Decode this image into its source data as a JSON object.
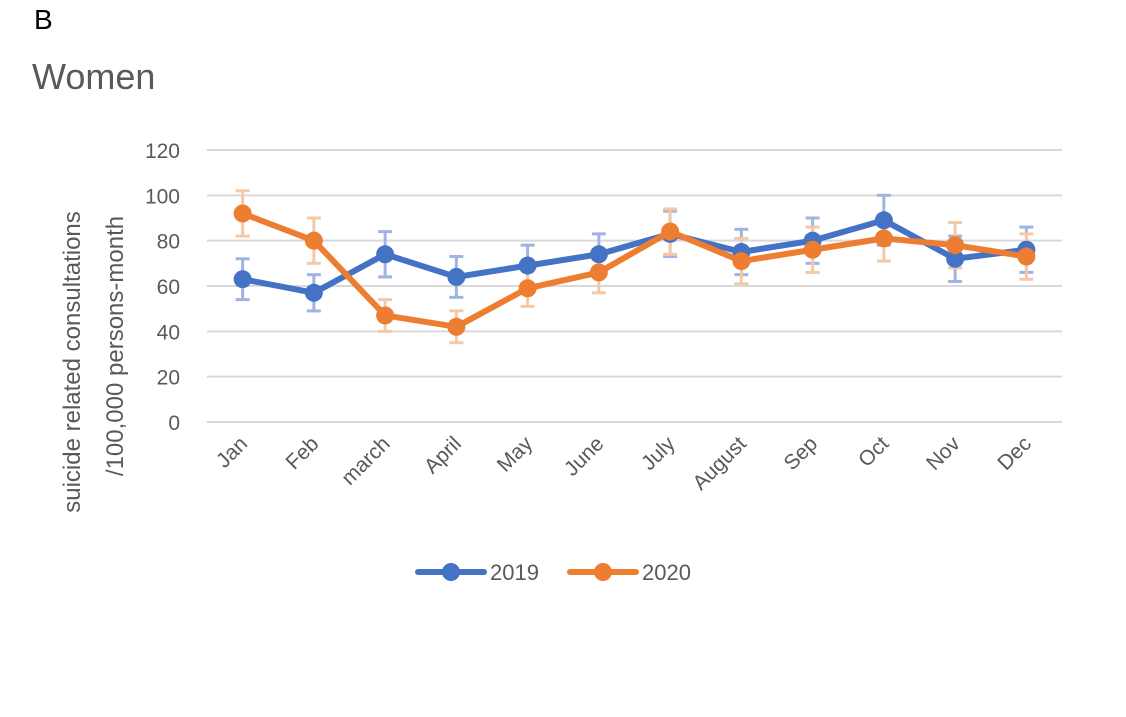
{
  "panel_letter": "B",
  "chart_data": {
    "type": "line",
    "title": "Women",
    "ylabel": [
      "suicide related consultations",
      "/100,000 persons-month"
    ],
    "xlabel": "",
    "ylim": [
      0,
      120
    ],
    "yticks": [
      0,
      20,
      40,
      60,
      80,
      100,
      120
    ],
    "grid": true,
    "legend_position": "bottom",
    "categories": [
      "Jan",
      "Feb",
      "march",
      "April",
      "May",
      "June",
      "July",
      "August",
      "Sep",
      "Oct",
      "Nov",
      "Dec"
    ],
    "series": [
      {
        "name": "2019",
        "color": "#4472C4",
        "errorbar_color": "#9FB4E3",
        "values": [
          63,
          57,
          74,
          64,
          69,
          74,
          83,
          75,
          80,
          89,
          72,
          76
        ],
        "errors": [
          9,
          8,
          10,
          9,
          9,
          9,
          10,
          10,
          10,
          11,
          10,
          10
        ]
      },
      {
        "name": "2020",
        "color": "#ED7D31",
        "errorbar_color": "#F4C9A6",
        "values": [
          92,
          80,
          47,
          42,
          59,
          66,
          84,
          71,
          76,
          81,
          78,
          73
        ],
        "errors": [
          10,
          10,
          7,
          7,
          8,
          9,
          10,
          10,
          10,
          10,
          10,
          10
        ]
      }
    ]
  }
}
